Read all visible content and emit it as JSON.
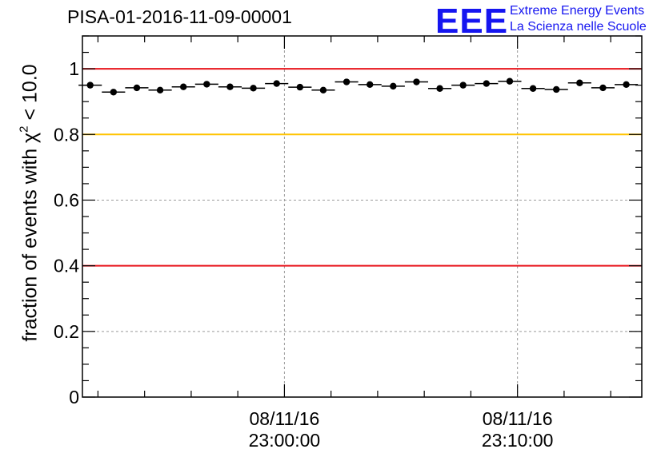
{
  "header": {
    "title": "PISA-01-2016-11-09-00001",
    "logo_text": "EEE",
    "logo_line1": "Extreme Energy Events",
    "logo_line2": "La Scienza nelle Scuole"
  },
  "colors": {
    "data": "#000000",
    "red_line": "#e8141c",
    "yellow_line": "#ffc400",
    "grid": "#9a9a9a",
    "logo": "#1515f0"
  },
  "chart_data": {
    "type": "scatter",
    "title": "PISA-01-2016-11-09-00001",
    "ylabel_prefix": "fraction of events with χ",
    "ylabel_sup": "2",
    "ylabel_suffix": " < 10.0",
    "ylim": [
      0,
      1.1
    ],
    "xlim": [
      "2016-11-08 22:51:20",
      "2016-11-08 23:15:20"
    ],
    "y_ticks": [
      0,
      0.2,
      0.4,
      0.6,
      0.8,
      1
    ],
    "y_tick_labels": [
      "0",
      "0.2",
      "0.4",
      "0.6",
      "0.8",
      "1"
    ],
    "x_ticks": [
      {
        "time": "2016-11-08 23:00:00",
        "label_date": "08/11/16",
        "label_time": "23:00:00"
      },
      {
        "time": "2016-11-08 23:10:00",
        "label_date": "08/11/16",
        "label_time": "23:10:00"
      }
    ],
    "grid": true,
    "reference_lines": [
      {
        "y": 1.0,
        "color": "red"
      },
      {
        "y": 0.8,
        "color": "yellow"
      },
      {
        "y": 0.4,
        "color": "red"
      }
    ],
    "series": [
      {
        "x": [
          "22:51:40",
          "22:52:40",
          "22:53:40",
          "22:54:40",
          "22:55:40",
          "22:56:40",
          "22:57:40",
          "22:58:40",
          "22:59:40",
          "23:00:40",
          "23:01:40",
          "23:02:40",
          "23:03:40",
          "23:04:40",
          "23:05:40",
          "23:06:40",
          "23:07:40",
          "23:08:40",
          "23:09:40",
          "23:10:40",
          "23:11:40",
          "23:12:40",
          "23:13:40",
          "23:14:40"
        ],
        "y": [
          0.95,
          0.929,
          0.942,
          0.935,
          0.945,
          0.953,
          0.945,
          0.941,
          0.955,
          0.944,
          0.935,
          0.96,
          0.952,
          0.947,
          0.96,
          0.94,
          0.95,
          0.955,
          0.962,
          0.94,
          0.937,
          0.957,
          0.942,
          0.952
        ]
      }
    ]
  }
}
